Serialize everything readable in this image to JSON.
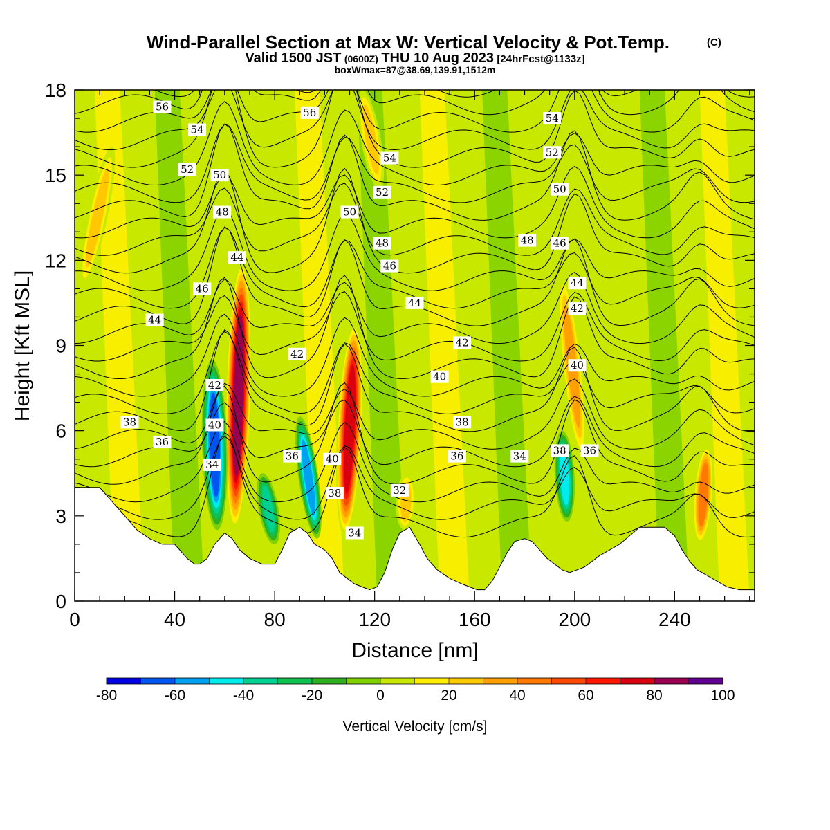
{
  "title": "Wind-Parallel Section at Max W: Vertical Velocity & Pot.Temp.",
  "title_mark": "(C)",
  "subtitle": {
    "prefix": "Valid 1500 JST",
    "zulu": "(0600Z)",
    "date": "THU 10 Aug 2023",
    "fcst": "[24hrFcst@1133z]"
  },
  "subtitle2": "boxWmax=87@38.69,139.91,1512m",
  "chart_data": {
    "type": "heatmap",
    "xlabel": "Distance [nm]",
    "ylabel": "Height [Kft MSL]",
    "xlim": [
      0,
      272
    ],
    "ylim": [
      0,
      18
    ],
    "x_ticks": [
      0,
      40,
      80,
      120,
      160,
      200,
      240
    ],
    "y_ticks": [
      0,
      3,
      6,
      9,
      12,
      15,
      18
    ],
    "colorbar": {
      "label": "Vertical Velocity [cm/s]",
      "levels": [
        -80,
        -70,
        -60,
        -50,
        -40,
        -30,
        -20,
        -10,
        0,
        10,
        20,
        30,
        40,
        50,
        60,
        70,
        80,
        90,
        100
      ],
      "tick_labels": [
        "-80",
        "-60",
        "-40",
        "-20",
        "0",
        "20",
        "40",
        "60",
        "80",
        "100"
      ],
      "tick_values": [
        -80,
        -60,
        -40,
        -20,
        0,
        20,
        40,
        60,
        80,
        100
      ],
      "colors": [
        "#0000e0",
        "#0055f0",
        "#00a0f0",
        "#00ecec",
        "#00d090",
        "#10c050",
        "#30b020",
        "#80d000",
        "#c8e800",
        "#ffee00",
        "#ffc800",
        "#ffa000",
        "#ff7800",
        "#ff4800",
        "#ff1800",
        "#d80010",
        "#980050",
        "#600090"
      ]
    },
    "terrain": [
      [
        0,
        4.0
      ],
      [
        10,
        4.0
      ],
      [
        15,
        3.5
      ],
      [
        20,
        3.0
      ],
      [
        25,
        2.5
      ],
      [
        30,
        2.2
      ],
      [
        35,
        2.0
      ],
      [
        40,
        2.0
      ],
      [
        42,
        1.8
      ],
      [
        45,
        1.5
      ],
      [
        48,
        1.3
      ],
      [
        50,
        1.3
      ],
      [
        53,
        1.5
      ],
      [
        56,
        2.0
      ],
      [
        60,
        2.4
      ],
      [
        63,
        2.2
      ],
      [
        66,
        1.8
      ],
      [
        70,
        1.5
      ],
      [
        75,
        1.3
      ],
      [
        80,
        1.3
      ],
      [
        83,
        1.8
      ],
      [
        86,
        2.4
      ],
      [
        90,
        2.6
      ],
      [
        93,
        2.4
      ],
      [
        96,
        2.0
      ],
      [
        100,
        1.8
      ],
      [
        103,
        1.5
      ],
      [
        106,
        1.0
      ],
      [
        109,
        0.8
      ],
      [
        112,
        0.6
      ],
      [
        115,
        0.5
      ],
      [
        118,
        0.4
      ],
      [
        121,
        0.5
      ],
      [
        124,
        1.0
      ],
      [
        127,
        1.8
      ],
      [
        130,
        2.4
      ],
      [
        134,
        2.6
      ],
      [
        138,
        2.0
      ],
      [
        141,
        1.5
      ],
      [
        145,
        1.1
      ],
      [
        150,
        0.8
      ],
      [
        155,
        0.6
      ],
      [
        158,
        0.5
      ],
      [
        161,
        0.4
      ],
      [
        164,
        0.4
      ],
      [
        167,
        0.7
      ],
      [
        170,
        1.2
      ],
      [
        173,
        1.7
      ],
      [
        176,
        2.1
      ],
      [
        180,
        2.2
      ],
      [
        183,
        2.1
      ],
      [
        186,
        1.8
      ],
      [
        189,
        1.5
      ],
      [
        192,
        1.3
      ],
      [
        195,
        1.1
      ],
      [
        198,
        1.0
      ],
      [
        201,
        1.1
      ],
      [
        204,
        1.2
      ],
      [
        207,
        1.4
      ],
      [
        210,
        1.6
      ],
      [
        214,
        1.8
      ],
      [
        218,
        2.0
      ],
      [
        222,
        2.3
      ],
      [
        226,
        2.6
      ],
      [
        232,
        2.6
      ],
      [
        236,
        2.6
      ],
      [
        240,
        2.3
      ],
      [
        243,
        1.8
      ],
      [
        246,
        1.4
      ],
      [
        249,
        1.1
      ],
      [
        253,
        0.9
      ],
      [
        257,
        0.7
      ],
      [
        261,
        0.5
      ],
      [
        266,
        0.4
      ],
      [
        272,
        0.4
      ]
    ],
    "w_features": [
      {
        "x0": 64,
        "x1": 67,
        "y0": 2.5,
        "y1": 12.0,
        "w": 90
      },
      {
        "x0": 108,
        "x1": 112,
        "y0": 2.3,
        "y1": 9.8,
        "w": 80
      },
      {
        "x0": 57,
        "x1": 55,
        "y0": 2.5,
        "y1": 8.5,
        "w": -70
      },
      {
        "x0": 97,
        "x1": 90,
        "y0": 2.2,
        "y1": 6.5,
        "w": -55
      },
      {
        "x0": 197,
        "x1": 195,
        "y0": 2.8,
        "y1": 6.0,
        "w": -45
      },
      {
        "x0": 203,
        "x1": 195,
        "y0": 5.0,
        "y1": 11.5,
        "w": 35
      },
      {
        "x0": 250,
        "x1": 253,
        "y0": 2.0,
        "y1": 5.5,
        "w": 45
      },
      {
        "x0": 3,
        "x1": 15,
        "y0": 11.0,
        "y1": 16.0,
        "w": 25
      },
      {
        "x0": 122,
        "x1": 115,
        "y0": 14.5,
        "y1": 18.0,
        "w": 25
      },
      {
        "x0": 132,
        "x1": 133,
        "y0": 2.5,
        "y1": 4.5,
        "w": 30
      },
      {
        "x0": 80,
        "x1": 75,
        "y0": 2.0,
        "y1": 4.5,
        "w": -35
      }
    ],
    "theta_contours": {
      "levels": [
        32,
        33,
        34,
        35,
        36,
        37,
        38,
        39,
        40,
        41,
        42,
        43,
        44,
        45,
        46,
        47,
        48,
        49,
        50,
        51,
        52,
        53,
        54,
        55,
        56,
        57
      ],
      "labels": [
        {
          "value": 56,
          "x": 35,
          "y": 17.4,
          "text": "56"
        },
        {
          "value": 54,
          "x": 49,
          "y": 16.6,
          "text": "54"
        },
        {
          "value": 52,
          "x": 45,
          "y": 15.2,
          "text": "52"
        },
        {
          "value": 50,
          "x": 58,
          "y": 15.0,
          "text": "50"
        },
        {
          "value": 48,
          "x": 59,
          "y": 13.7,
          "text": "48"
        },
        {
          "value": 44,
          "x": 65,
          "y": 12.1,
          "text": "44"
        },
        {
          "value": 46,
          "x": 51,
          "y": 11.0,
          "text": "46"
        },
        {
          "value": 44,
          "x": 32,
          "y": 9.9,
          "text": "44"
        },
        {
          "value": 42,
          "x": 56,
          "y": 7.6,
          "text": "42"
        },
        {
          "value": 40,
          "x": 56,
          "y": 6.2,
          "text": "40"
        },
        {
          "value": 38,
          "x": 22,
          "y": 6.3,
          "text": "38"
        },
        {
          "value": 36,
          "x": 35,
          "y": 5.6,
          "text": "36"
        },
        {
          "value": 34,
          "x": 55,
          "y": 4.8,
          "text": "34"
        },
        {
          "value": 56,
          "x": 94,
          "y": 17.2,
          "text": "56"
        },
        {
          "value": 54,
          "x": 126,
          "y": 15.6,
          "text": "54"
        },
        {
          "value": 52,
          "x": 123,
          "y": 14.4,
          "text": "52"
        },
        {
          "value": 50,
          "x": 110,
          "y": 13.7,
          "text": "50"
        },
        {
          "value": 48,
          "x": 123,
          "y": 12.6,
          "text": "48"
        },
        {
          "value": 46,
          "x": 126,
          "y": 11.8,
          "text": "46"
        },
        {
          "value": 44,
          "x": 136,
          "y": 10.5,
          "text": "44"
        },
        {
          "value": 42,
          "x": 89,
          "y": 8.7,
          "text": "42"
        },
        {
          "value": 42,
          "x": 155,
          "y": 9.1,
          "text": "42"
        },
        {
          "value": 40,
          "x": 146,
          "y": 7.9,
          "text": "40"
        },
        {
          "value": 38,
          "x": 155,
          "y": 6.3,
          "text": "38"
        },
        {
          "value": 36,
          "x": 87,
          "y": 5.1,
          "text": "36"
        },
        {
          "value": 40,
          "x": 103,
          "y": 5.0,
          "text": "40"
        },
        {
          "value": 36,
          "x": 153,
          "y": 5.1,
          "text": "36"
        },
        {
          "value": 38,
          "x": 104,
          "y": 3.8,
          "text": "38"
        },
        {
          "value": 32,
          "x": 130,
          "y": 3.9,
          "text": "32"
        },
        {
          "value": 34,
          "x": 112,
          "y": 2.4,
          "text": "34"
        },
        {
          "value": 54,
          "x": 191,
          "y": 17.0,
          "text": "54"
        },
        {
          "value": 52,
          "x": 191,
          "y": 15.8,
          "text": "52"
        },
        {
          "value": 50,
          "x": 194,
          "y": 14.5,
          "text": "50"
        },
        {
          "value": 48,
          "x": 181,
          "y": 12.7,
          "text": "48"
        },
        {
          "value": 46,
          "x": 194,
          "y": 12.6,
          "text": "46"
        },
        {
          "value": 44,
          "x": 201,
          "y": 11.2,
          "text": "44"
        },
        {
          "value": 42,
          "x": 201,
          "y": 10.3,
          "text": "42"
        },
        {
          "value": 40,
          "x": 201,
          "y": 8.3,
          "text": "40"
        },
        {
          "value": 34,
          "x": 178,
          "y": 5.1,
          "text": "34"
        },
        {
          "value": 38,
          "x": 194,
          "y": 5.3,
          "text": "38"
        },
        {
          "value": 36,
          "x": 206,
          "y": 5.3,
          "text": "36"
        }
      ]
    }
  }
}
